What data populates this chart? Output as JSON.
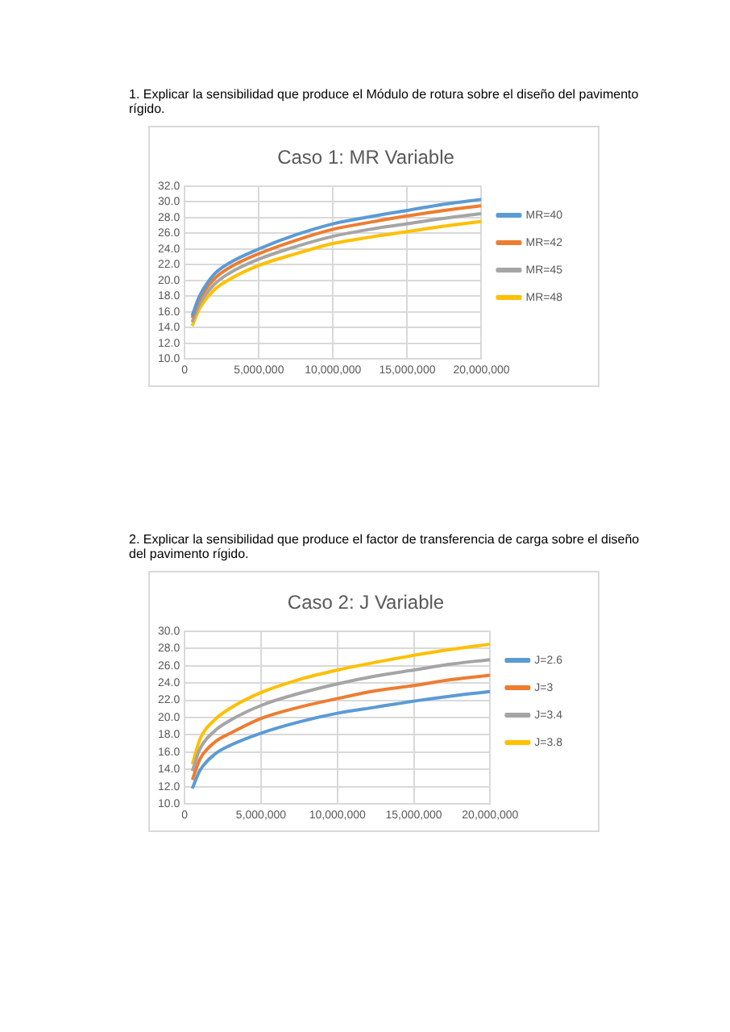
{
  "chart_data": [
    {
      "type": "line",
      "title": "Caso 1: MR Variable",
      "annotations": [
        "1. Explicar la sensibilidad que produce el Módulo de rotura sobre el diseño del pavimento rígido."
      ],
      "x": [
        500000,
        1000000,
        2000000,
        3000000,
        5000000,
        7500000,
        10000000,
        12500000,
        15000000,
        17500000,
        20000000
      ],
      "series": [
        {
          "name": "MR=40",
          "color": "#5b9bd5",
          "values": [
            15.5,
            18.0,
            20.8,
            22.2,
            24.0,
            25.8,
            27.2,
            28.1,
            28.9,
            29.7,
            30.3
          ]
        },
        {
          "name": "MR=42",
          "color": "#ed7d31",
          "values": [
            15.2,
            17.6,
            20.2,
            21.6,
            23.4,
            25.1,
            26.5,
            27.4,
            28.2,
            28.9,
            29.5
          ]
        },
        {
          "name": "MR=45",
          "color": "#a5a5a5",
          "values": [
            14.7,
            17.0,
            19.5,
            20.9,
            22.7,
            24.3,
            25.6,
            26.5,
            27.2,
            27.9,
            28.5
          ]
        },
        {
          "name": "MR=48",
          "color": "#ffc000",
          "values": [
            14.2,
            16.4,
            18.8,
            20.1,
            21.9,
            23.4,
            24.7,
            25.5,
            26.2,
            26.9,
            27.5
          ]
        }
      ],
      "xlim": [
        0,
        20000000
      ],
      "xticks": [
        0,
        {
          "value": 5000000,
          "label": "5,000,000"
        },
        {
          "value": 10000000,
          "label": "10,000,000"
        },
        {
          "value": 15000000,
          "label": "15,000,000"
        },
        {
          "value": 20000000,
          "label": "20,000,000"
        }
      ],
      "ylim": [
        10,
        32
      ],
      "yticks": [
        {
          "value": 10,
          "label": "10.0"
        },
        {
          "value": 12,
          "label": "12.0"
        },
        {
          "value": 14,
          "label": "14.0"
        },
        {
          "value": 16,
          "label": "16.0"
        },
        {
          "value": 18,
          "label": "18.0"
        },
        {
          "value": 20,
          "label": "20.0"
        },
        {
          "value": 22,
          "label": "22.0"
        },
        {
          "value": 24,
          "label": "24.0"
        },
        {
          "value": 26,
          "label": "26.0"
        },
        {
          "value": 28,
          "label": "28.0"
        },
        {
          "value": 30,
          "label": "30.0"
        },
        {
          "value": 32,
          "label": "32.0"
        }
      ],
      "grid": true,
      "legend": "right",
      "marker": "none",
      "line_style": "solid"
    },
    {
      "type": "line",
      "title": "Caso 2: J Variable",
      "annotations": [
        "2. Explicar la sensibilidad que produce el factor de transferencia de carga sobre el diseño del pavimento rígido."
      ],
      "x": [
        500000,
        1000000,
        2000000,
        3000000,
        5000000,
        7500000,
        10000000,
        12500000,
        15000000,
        17500000,
        20000000
      ],
      "series": [
        {
          "name": "J=2.6",
          "color": "#5b9bd5",
          "values": [
            11.8,
            13.9,
            15.8,
            16.8,
            18.2,
            19.5,
            20.5,
            21.2,
            21.9,
            22.5,
            23.0
          ]
        },
        {
          "name": "J=3",
          "color": "#ed7d31",
          "values": [
            12.8,
            15.2,
            17.2,
            18.2,
            19.9,
            21.2,
            22.2,
            23.1,
            23.7,
            24.4,
            24.9
          ]
        },
        {
          "name": "J=3.4",
          "color": "#a5a5a5",
          "values": [
            13.8,
            16.4,
            18.5,
            19.7,
            21.4,
            22.8,
            23.9,
            24.8,
            25.5,
            26.2,
            26.7
          ]
        },
        {
          "name": "J=3.8",
          "color": "#ffc000",
          "values": [
            14.6,
            17.5,
            19.8,
            21.1,
            22.9,
            24.4,
            25.5,
            26.4,
            27.2,
            27.9,
            28.5
          ]
        }
      ],
      "xlim": [
        0,
        20000000
      ],
      "xticks": [
        0,
        {
          "value": 5000000,
          "label": "5,000,000"
        },
        {
          "value": 10000000,
          "label": "10,000,000"
        },
        {
          "value": 15000000,
          "label": "15,000,000"
        },
        {
          "value": 20000000,
          "label": "20,000,000"
        }
      ],
      "ylim": [
        10,
        30
      ],
      "yticks": [
        {
          "value": 10,
          "label": "10.0"
        },
        {
          "value": 12,
          "label": "12.0"
        },
        {
          "value": 14,
          "label": "14.0"
        },
        {
          "value": 16,
          "label": "16.0"
        },
        {
          "value": 18,
          "label": "18.0"
        },
        {
          "value": 20,
          "label": "20.0"
        },
        {
          "value": 22,
          "label": "22.0"
        },
        {
          "value": 24,
          "label": "24.0"
        },
        {
          "value": 26,
          "label": "26.0"
        },
        {
          "value": 28,
          "label": "28.0"
        },
        {
          "value": 30,
          "label": "30.0"
        }
      ],
      "grid": true,
      "legend": "right",
      "marker": "none",
      "line_style": "solid"
    }
  ]
}
